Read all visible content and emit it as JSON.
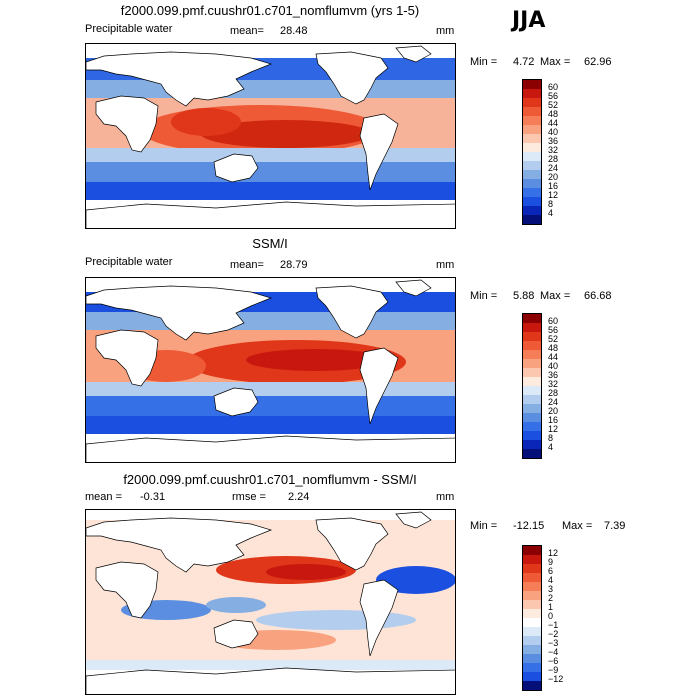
{
  "season": "JJA",
  "panels": [
    {
      "id": "model",
      "title": "f2000.099.pmf.cuushr01.c701_nomflumvm (yrs 1-5)",
      "left_label": "Precipitable water",
      "stat1_label": "mean=",
      "stat1_value": "28.48",
      "stat2_label": "",
      "stat2_value": "",
      "units": "mm",
      "min_label": "Min =",
      "min_value": "4.72",
      "max_label": "Max =",
      "max_value": "62.96",
      "colorbar_ticks": [
        "60",
        "56",
        "52",
        "48",
        "44",
        "40",
        "36",
        "32",
        "28",
        "24",
        "20",
        "16",
        "12",
        "8",
        "4"
      ],
      "colorbar_colors": [
        "#8b0000",
        "#c8170e",
        "#e0361a",
        "#ef5a36",
        "#f57d58",
        "#f8a27f",
        "#fbc7ae",
        "#fdebe0",
        "#dce9f7",
        "#b3cdee",
        "#85aee3",
        "#5b8ee0",
        "#3670e6",
        "#1a4fe0",
        "#0a26b8",
        "#050f7a"
      ]
    },
    {
      "id": "obs",
      "title": "SSM/I",
      "left_label": "Precipitable water",
      "stat1_label": "mean=",
      "stat1_value": "28.79",
      "stat2_label": "",
      "stat2_value": "",
      "units": "mm",
      "min_label": "Min =",
      "min_value": "5.88",
      "max_label": "Max =",
      "max_value": "66.68",
      "colorbar_ticks": [
        "60",
        "56",
        "52",
        "48",
        "44",
        "40",
        "36",
        "32",
        "28",
        "24",
        "20",
        "16",
        "12",
        "8",
        "4"
      ],
      "colorbar_colors": [
        "#8b0000",
        "#c8170e",
        "#e0361a",
        "#ef5a36",
        "#f57d58",
        "#f8a27f",
        "#fbc7ae",
        "#fdebe0",
        "#dce9f7",
        "#b3cdee",
        "#85aee3",
        "#5b8ee0",
        "#3670e6",
        "#1a4fe0",
        "#0a26b8",
        "#050f7a"
      ]
    },
    {
      "id": "diff",
      "title": "f2000.099.pmf.cuushr01.c701_nomflumvm - SSM/I",
      "left_label": "",
      "stat1_label": "mean =",
      "stat1_value": "-0.31",
      "stat2_label": "rmse =",
      "stat2_value": "2.24",
      "units": "mm",
      "min_label": "Min =",
      "min_value": "-12.15",
      "max_label": "Max =",
      "max_value": "7.39",
      "colorbar_ticks": [
        "12",
        "9",
        "6",
        "4",
        "3",
        "2",
        "1",
        "0",
        "−1",
        "−2",
        "−3",
        "−4",
        "−6",
        "−9",
        "−12"
      ],
      "colorbar_colors": [
        "#8b0000",
        "#c8170e",
        "#e0361a",
        "#ef5a36",
        "#f57d58",
        "#f8a27f",
        "#fbc7ae",
        "#fdebe0",
        "#ffffff",
        "#dce9f7",
        "#b3cdee",
        "#85aee3",
        "#5b8ee0",
        "#3670e6",
        "#1a4fe0",
        "#050f7a"
      ]
    }
  ]
}
